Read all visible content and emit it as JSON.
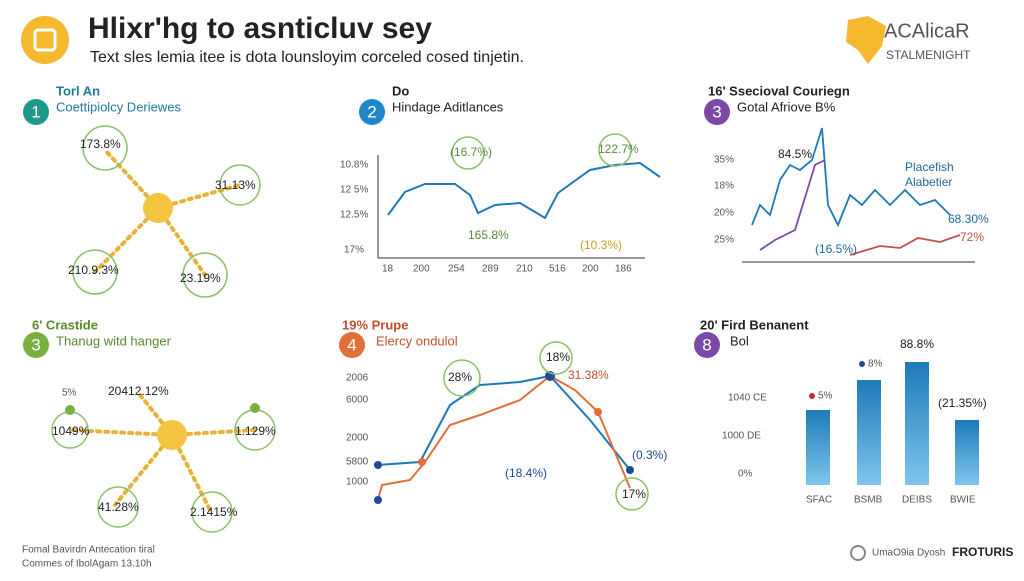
{
  "header": {
    "title": "Hlixr'hg to asnticluv sey",
    "subtitle": "Text sles lemia itee is dota lounsloyim corceled cosed tinjetin.",
    "logo": [
      "ACAlicaR",
      "STALMENIGHT"
    ]
  },
  "panels": [
    {
      "number": "1",
      "kicker": "Torl An",
      "heading": "Coettipiolcy Deriewes",
      "labels": [
        "173.8%",
        "31.13%",
        "210.9.3%",
        "23.19%"
      ]
    },
    {
      "number": "2",
      "kicker": "Do",
      "heading": "Hindage Aditlances",
      "labels": [
        "(16.7%)",
        "122.7%",
        "165.8%",
        "(10.3%)"
      ],
      "axis": [
        "10.8%",
        "12 5%",
        "12.5%",
        "17%",
        "18",
        "200",
        "254",
        "289",
        "210",
        "516",
        "200",
        "186"
      ]
    },
    {
      "number": "3",
      "kicker": "16' Ssecioval Couriegn",
      "heading": "Gotal Afriove B%",
      "labels": [
        "84.5%",
        "Placefish",
        "Alabetier",
        "68.30%",
        "(16.5%)",
        "72%"
      ],
      "axis": [
        "35%",
        "18%",
        "20%",
        "25%"
      ]
    },
    {
      "number": "3",
      "kicker": "6' Crastide",
      "heading": "Thanug witd hanger",
      "labels": [
        "20412.12%",
        "1049%",
        "1.129%",
        "41.28%",
        "2.1415%",
        "5%"
      ]
    },
    {
      "number": "4",
      "kicker": "19% Prupe",
      "heading": "Elercy ondulol",
      "labels": [
        "28%",
        "18%",
        "31.38%",
        "(18.4%)",
        "(0.3%)",
        "17%"
      ],
      "axis": [
        "2006",
        "6000",
        "2000",
        "5800",
        "1000"
      ]
    },
    {
      "number": "8",
      "kicker": "20' Fird Benanent",
      "heading": "Bol",
      "labels": [
        "88.8%",
        "(21.35%)",
        "8%",
        "5%"
      ],
      "axis": [
        "1040 CE",
        "1000 DE",
        "0%",
        "SFAC",
        "BSMB",
        "DEIBS",
        "BWIE"
      ]
    }
  ],
  "footer": {
    "notes": [
      "Fomal Bavirdn Antecation tiral",
      "Commes of IbolAgam 13.10h"
    ],
    "brand": [
      "UmaO9ia Dyosh",
      "FROTURIS"
    ]
  }
}
